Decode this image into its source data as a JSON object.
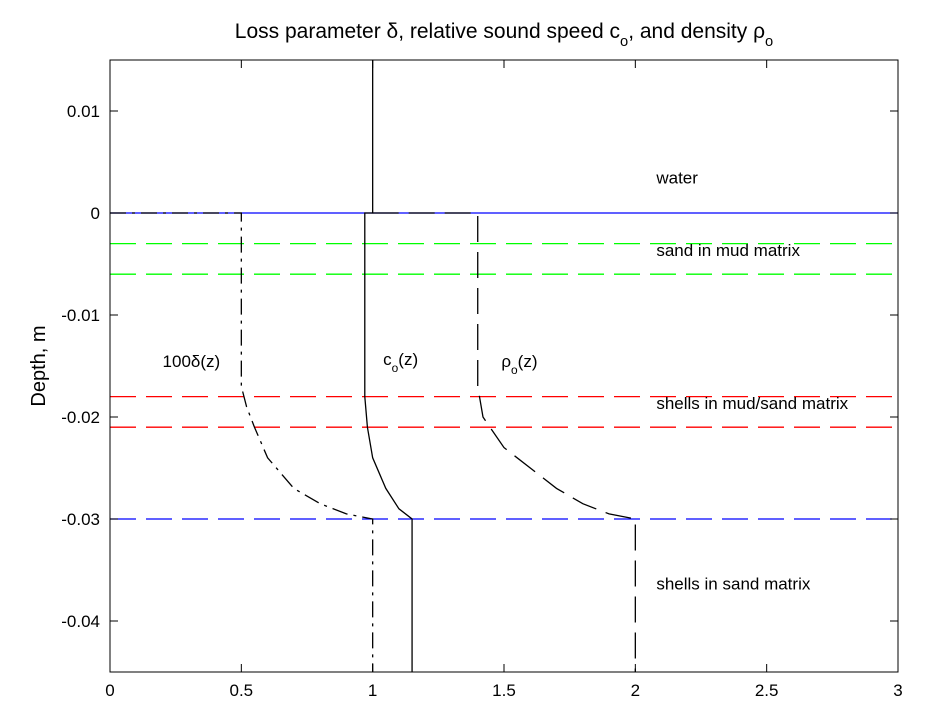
{
  "chart_data": {
    "type": "line",
    "title": [
      {
        "text": "Loss parameter δ, relative sound speed c"
      },
      {
        "text": "o",
        "sub": true
      },
      {
        "text": ", and density ρ"
      },
      {
        "text": "o",
        "sub": true
      }
    ],
    "y_label": "Depth, m",
    "xlim": [
      0,
      3
    ],
    "ylim": [
      -0.045,
      0.015
    ],
    "xticks": [
      0,
      0.5,
      1,
      1.5,
      2,
      2.5,
      3
    ],
    "yticks": [
      -0.04,
      -0.03,
      -0.02,
      -0.01,
      0,
      0.01
    ],
    "grid": false,
    "series": [
      {
        "color": "#0000ff",
        "dash": "solid",
        "x": [
          0,
          3
        ],
        "y": [
          0,
          0
        ]
      },
      {
        "color": "#00ff00",
        "dash": "dashed",
        "x": [
          0,
          3
        ],
        "y": [
          -0.003,
          -0.003
        ]
      },
      {
        "color": "#00ff00",
        "dash": "dashed",
        "x": [
          0,
          3
        ],
        "y": [
          -0.006,
          -0.006
        ]
      },
      {
        "color": "#ff0000",
        "dash": "dashed",
        "x": [
          0,
          3
        ],
        "y": [
          -0.018,
          -0.018
        ]
      },
      {
        "color": "#ff0000",
        "dash": "dashed",
        "x": [
          0,
          3
        ],
        "y": [
          -0.021,
          -0.021
        ]
      },
      {
        "color": "#0000ff",
        "dash": "dashed",
        "x": [
          0,
          3
        ],
        "y": [
          -0.03,
          -0.03
        ]
      },
      {
        "color": "#000000",
        "dash": "dashdot",
        "x": [
          0,
          0.5,
          0.5,
          0.52,
          0.55,
          0.6,
          0.7,
          0.8,
          0.9,
          1.0,
          1.0
        ],
        "y": [
          0,
          0,
          -0.017,
          -0.019,
          -0.021,
          -0.024,
          -0.027,
          -0.0285,
          -0.0295,
          -0.03,
          -0.045
        ]
      },
      {
        "color": "#000000",
        "dash": "solid",
        "x": [
          1,
          1,
          0.97,
          0.97,
          0.98,
          1.0,
          1.05,
          1.1,
          1.15,
          1.15
        ],
        "y": [
          0.015,
          0,
          0,
          -0.018,
          -0.021,
          -0.024,
          -0.027,
          -0.029,
          -0.03,
          -0.045
        ]
      },
      {
        "color": "#000000",
        "dash": "dashed",
        "x": [
          1,
          1.4,
          1.4,
          1.42,
          1.5,
          1.6,
          1.7,
          1.8,
          1.9,
          2.0,
          2.0
        ],
        "y": [
          0,
          0,
          -0.017,
          -0.02,
          -0.023,
          -0.025,
          -0.027,
          -0.0285,
          -0.0295,
          -0.03,
          -0.045
        ]
      }
    ],
    "annotations": [
      {
        "x": 2.08,
        "y": 0.0029,
        "parts": [
          {
            "text": "water"
          }
        ]
      },
      {
        "x": 2.08,
        "y": -0.0042,
        "parts": [
          {
            "text": "sand in mud matrix"
          }
        ]
      },
      {
        "x": 2.08,
        "y": -0.0192,
        "parts": [
          {
            "text": "shells in mud/sand matrix"
          }
        ]
      },
      {
        "x": 2.08,
        "y": -0.0369,
        "parts": [
          {
            "text": "shells in sand matrix"
          }
        ]
      },
      {
        "x": 0.2,
        "y": -0.0151,
        "parts": [
          {
            "text": "100δ(z)"
          }
        ]
      },
      {
        "x": 1.04,
        "y": -0.0149,
        "parts": [
          {
            "text": "c"
          },
          {
            "text": "o",
            "sub": true
          },
          {
            "text": "(z)"
          }
        ]
      },
      {
        "x": 1.49,
        "y": -0.0151,
        "parts": [
          {
            "text": "ρ"
          },
          {
            "text": "o",
            "sub": true
          },
          {
            "text": "(z)"
          }
        ]
      }
    ]
  }
}
